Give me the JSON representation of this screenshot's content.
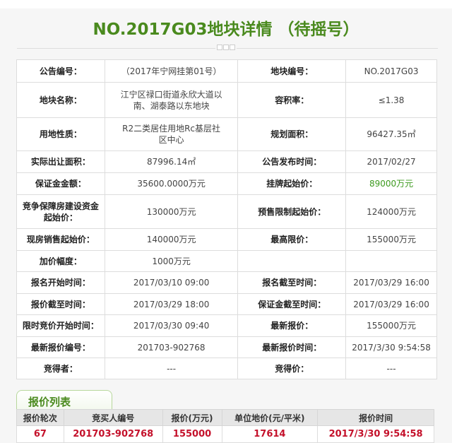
{
  "title": "NO.2017G03地块详情 （待摇号）",
  "info": [
    [
      "公告编号：",
      "（2017年宁网挂第01号）",
      "地块编号：",
      "NO.2017G03"
    ],
    [
      "地块名称：",
      "江宁区禄口街道永欣大道以南、湖泰路以东地块",
      "容积率：",
      "≤1.38"
    ],
    [
      "用地性质：",
      "R2二类居住用地Rc基层社区中心",
      "规划面积：",
      "96427.35㎡"
    ],
    [
      "实际出让面积：",
      "87996.14㎡",
      "公告发布时间：",
      "2017/02/27"
    ],
    [
      "保证金金额：",
      "35600.0000万元",
      "挂牌起始价：",
      "89000万元"
    ],
    [
      "竞争保障房建设资金起始价：",
      "130000万元",
      "预售限制起始价：",
      "124000万元"
    ],
    [
      "现房销售起始价：",
      "140000万元",
      "最高限价：",
      "155000万元"
    ],
    [
      "加价幅度：",
      "1000万元",
      "",
      ""
    ],
    [
      "报名开始时间：",
      "2017/03/10 09:00",
      "报名截至时间：",
      "2017/03/29 16:00"
    ],
    [
      "报价截至时间：",
      "2017/03/29 18:00",
      "保证金截至时间：",
      "2017/03/29 16:00"
    ],
    [
      "限时竞价开始时间：",
      "2017/03/30 09:40",
      "最新报价：",
      "155000万元"
    ],
    [
      "最新报价编号：",
      "201703-902768",
      "最新报价时间：",
      "2017/3/30 9:54:58"
    ],
    [
      "竞得者：",
      "---",
      "竞得价：",
      "---"
    ]
  ],
  "bid_list": {
    "tab_label": "报价列表",
    "headers": [
      "报价轮次",
      "竞买人编号",
      "报价(万元)",
      "单位地价(元/平米)",
      "报价时间"
    ],
    "rows": [
      [
        "67",
        "201703-902768",
        "155000",
        "17614",
        "2017/3/30 9:54:58"
      ]
    ]
  },
  "colors": {
    "title": "#4a8a1e",
    "highlight": "#3c9a1e",
    "bid_value": "#c4112b"
  }
}
